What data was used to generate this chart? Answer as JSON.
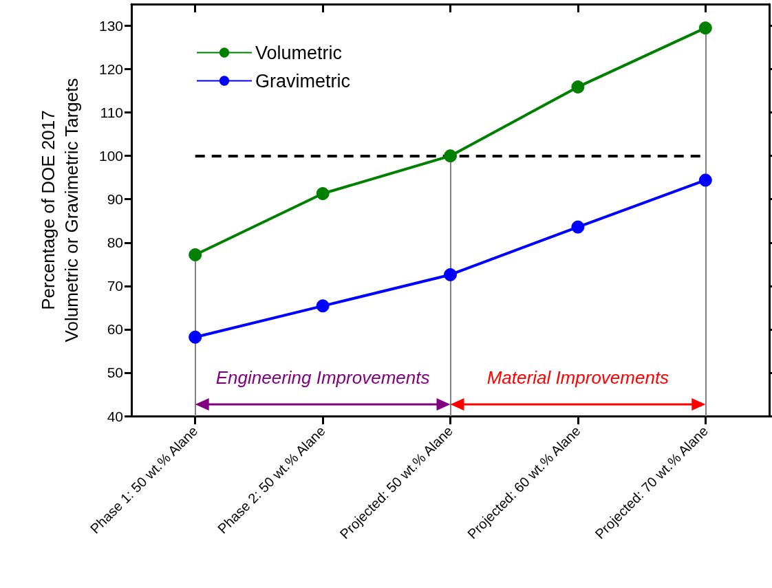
{
  "chart_data": {
    "type": "line",
    "ylabel": "Percentage of DOE 2017\nVolumetric or Gravimetric Targets",
    "categories": [
      "Phase 1: 50 wt.% Alane",
      "Phase 2: 50 wt.% Alane",
      "Projected: 50 wt.% Alane",
      "Projected: 60 wt.% Alane",
      "Projected: 70 wt.% Alane"
    ],
    "series": [
      {
        "name": "Volumetric",
        "color": "#008000",
        "values": [
          77.2,
          91.3,
          100,
          115.9,
          129.5
        ]
      },
      {
        "name": "Gravimetric",
        "color": "#0000ff",
        "values": [
          58.2,
          65.4,
          72.6,
          83.6,
          94.4
        ]
      }
    ],
    "ylim": [
      40,
      135
    ],
    "yticks": [
      40,
      50,
      60,
      70,
      80,
      90,
      100,
      110,
      120,
      130
    ],
    "ref_lines": [
      {
        "axis": "y",
        "value": 100,
        "color": "#000000",
        "line_style": "dashed"
      },
      {
        "axis": "x",
        "value": "Phase 1: 50 wt.% Alane",
        "color": "#808080"
      },
      {
        "axis": "x",
        "value": "Projected: 50 wt.% Alane",
        "color": "#808080"
      },
      {
        "axis": "x",
        "value": "Projected: 70 wt.% Alane",
        "color": "#808080"
      }
    ],
    "annotations": [
      "Engineering Improvements",
      "Material Improvements"
    ],
    "legend": "top left",
    "marker": "circle",
    "line_style": "solid",
    "grid": false
  }
}
